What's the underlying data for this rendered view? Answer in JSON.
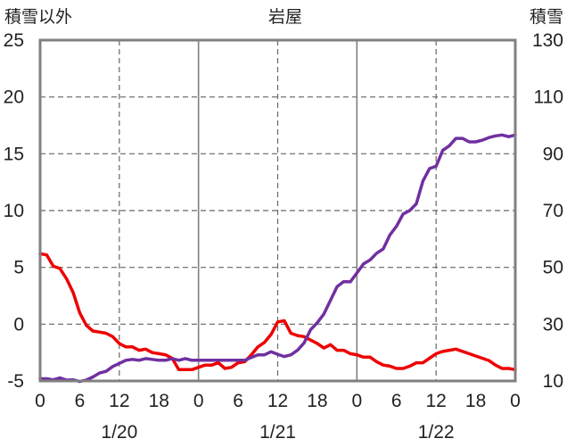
{
  "chart_data": {
    "type": "line",
    "title": "岩屋",
    "y_left_label": "積雪以外",
    "y_right_label": "積雪",
    "y_left_range": [
      -5,
      25
    ],
    "y_left_ticks": [
      -5,
      0,
      5,
      10,
      15,
      20,
      25
    ],
    "y_right_range": [
      10,
      130
    ],
    "y_right_ticks": [
      10,
      30,
      50,
      70,
      90,
      110,
      130
    ],
    "x_range_hours": [
      0,
      72
    ],
    "x_tick_labels": [
      "0",
      "6",
      "12",
      "18",
      "0",
      "6",
      "12",
      "18",
      "0",
      "6",
      "12",
      "18",
      "0"
    ],
    "date_labels": [
      "1/20",
      "1/21",
      "1/22"
    ],
    "grid": true,
    "colors": {
      "temperature": "#ee0000",
      "snow_depth": "#7030a0",
      "grid": "#666666",
      "frame": "#808080"
    },
    "series": [
      {
        "axis": "left",
        "color": "#ee0000",
        "x": [
          0,
          1,
          2,
          3,
          4,
          5,
          6,
          7,
          8,
          9,
          10,
          11,
          12,
          13,
          14,
          15,
          16,
          17,
          18,
          19,
          20,
          21,
          22,
          23,
          24,
          25,
          26,
          27,
          28,
          29,
          30,
          31,
          32,
          33,
          34,
          35,
          36,
          37,
          38,
          39,
          40,
          41,
          42,
          43,
          44,
          45,
          46,
          47,
          48,
          49,
          50,
          51,
          52,
          53,
          54,
          55,
          56,
          57,
          58,
          59,
          60,
          61,
          62,
          63,
          64,
          65,
          66,
          67,
          68,
          69,
          70,
          71,
          72
        ],
        "values": [
          6.2,
          6.1,
          5.1,
          4.9,
          4.0,
          2.8,
          1.0,
          -0.1,
          -0.6,
          -0.7,
          -0.8,
          -1.1,
          -1.7,
          -2.0,
          -2.0,
          -2.3,
          -2.2,
          -2.5,
          -2.6,
          -2.7,
          -3.0,
          -4.0,
          -4.0,
          -4.0,
          -3.8,
          -3.6,
          -3.6,
          -3.4,
          -3.9,
          -3.8,
          -3.4,
          -3.3,
          -2.7,
          -2.0,
          -1.6,
          -0.9,
          0.2,
          0.3,
          -0.8,
          -1.0,
          -1.1,
          -1.4,
          -1.7,
          -2.1,
          -1.8,
          -2.3,
          -2.3,
          -2.6,
          -2.7,
          -2.9,
          -2.9,
          -3.3,
          -3.6,
          -3.7,
          -3.9,
          -3.9,
          -3.7,
          -3.4,
          -3.4,
          -3.0,
          -2.6,
          -2.4,
          -2.3,
          -2.2,
          -2.4,
          -2.6,
          -2.8,
          -3.0,
          -3.2,
          -3.6,
          -3.9,
          -3.9,
          -4.0
        ]
      },
      {
        "axis": "right",
        "color": "#7030a0",
        "x": [
          0,
          1,
          2,
          3,
          4,
          5,
          6,
          7,
          8,
          9,
          10,
          11,
          12,
          13,
          14,
          15,
          16,
          17,
          18,
          19,
          20,
          21,
          22,
          23,
          24,
          25,
          26,
          27,
          28,
          29,
          30,
          31,
          32,
          33,
          34,
          35,
          36,
          37,
          38,
          39,
          40,
          41,
          42,
          43,
          44,
          45,
          46,
          47,
          48,
          49,
          50,
          51,
          52,
          53,
          54,
          55,
          56,
          57,
          58,
          59,
          60,
          61,
          62,
          63,
          64,
          65,
          66,
          67,
          68,
          69,
          70,
          71,
          72
        ],
        "values": [
          10.8,
          10.8,
          10.4,
          11.1,
          10.3,
          10.4,
          9.8,
          10.3,
          11.4,
          12.8,
          13.4,
          15.1,
          16.2,
          17.3,
          17.6,
          17.3,
          17.9,
          17.6,
          17.3,
          17.3,
          17.9,
          17.3,
          17.9,
          17.3,
          17.3,
          17.3,
          17.3,
          17.3,
          17.3,
          17.3,
          17.3,
          17.3,
          18.3,
          19.2,
          19.2,
          20.3,
          19.4,
          18.6,
          19.2,
          20.8,
          23.4,
          28.1,
          30.5,
          33.6,
          38.4,
          43.2,
          45.0,
          44.9,
          48.0,
          51.2,
          52.6,
          55.0,
          56.5,
          61.4,
          64.5,
          68.8,
          70.0,
          72.4,
          80.4,
          84.8,
          85.6,
          91.2,
          92.8,
          95.4,
          95.4,
          94.2,
          94.2,
          94.8,
          95.7,
          96.3,
          96.6,
          96.0,
          96.6
        ]
      }
    ]
  }
}
